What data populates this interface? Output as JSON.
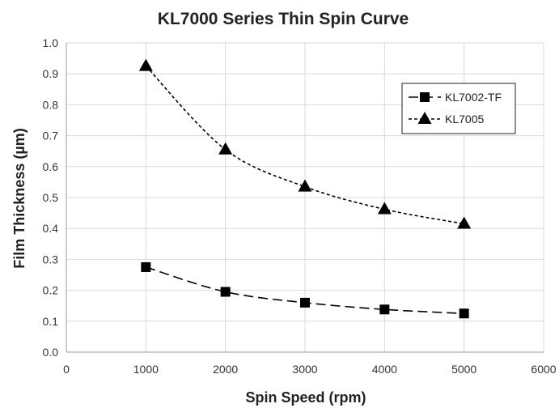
{
  "chart_data": {
    "type": "line",
    "title": "KL7000 Series Thin Spin Curve",
    "xlabel": "Spin Speed (rpm)",
    "ylabel": "Film Thickness (µm)",
    "xlim": [
      0,
      6000
    ],
    "ylim": [
      0,
      1.0
    ],
    "xticks": [
      0,
      1000,
      2000,
      3000,
      4000,
      5000,
      6000
    ],
    "xtick_labels": [
      "0",
      "1000",
      "2000",
      "3000",
      "4000",
      "5000",
      "6000"
    ],
    "yticks": [
      0,
      0.1,
      0.2,
      0.3,
      0.4,
      0.5,
      0.6,
      0.7,
      0.8,
      0.9,
      1.0
    ],
    "ytick_labels": [
      "0.0",
      "0.1",
      "0.2",
      "0.3",
      "0.4",
      "0.5",
      "0.6",
      "0.7",
      "0.8",
      "0.9",
      "1.0"
    ],
    "grid": true,
    "legend_position": "top-right",
    "series": [
      {
        "name": "KL7002-TF",
        "x": [
          1000,
          2000,
          3000,
          4000,
          5000
        ],
        "y": [
          0.275,
          0.195,
          0.16,
          0.138,
          0.125
        ],
        "marker": "square",
        "line_style": "long-dash",
        "color": "#000000"
      },
      {
        "name": "KL7005",
        "x": [
          1000,
          2000,
          3000,
          4000,
          5000
        ],
        "y": [
          0.925,
          0.655,
          0.535,
          0.462,
          0.415
        ],
        "marker": "triangle",
        "line_style": "short-dash",
        "color": "#000000"
      }
    ]
  }
}
